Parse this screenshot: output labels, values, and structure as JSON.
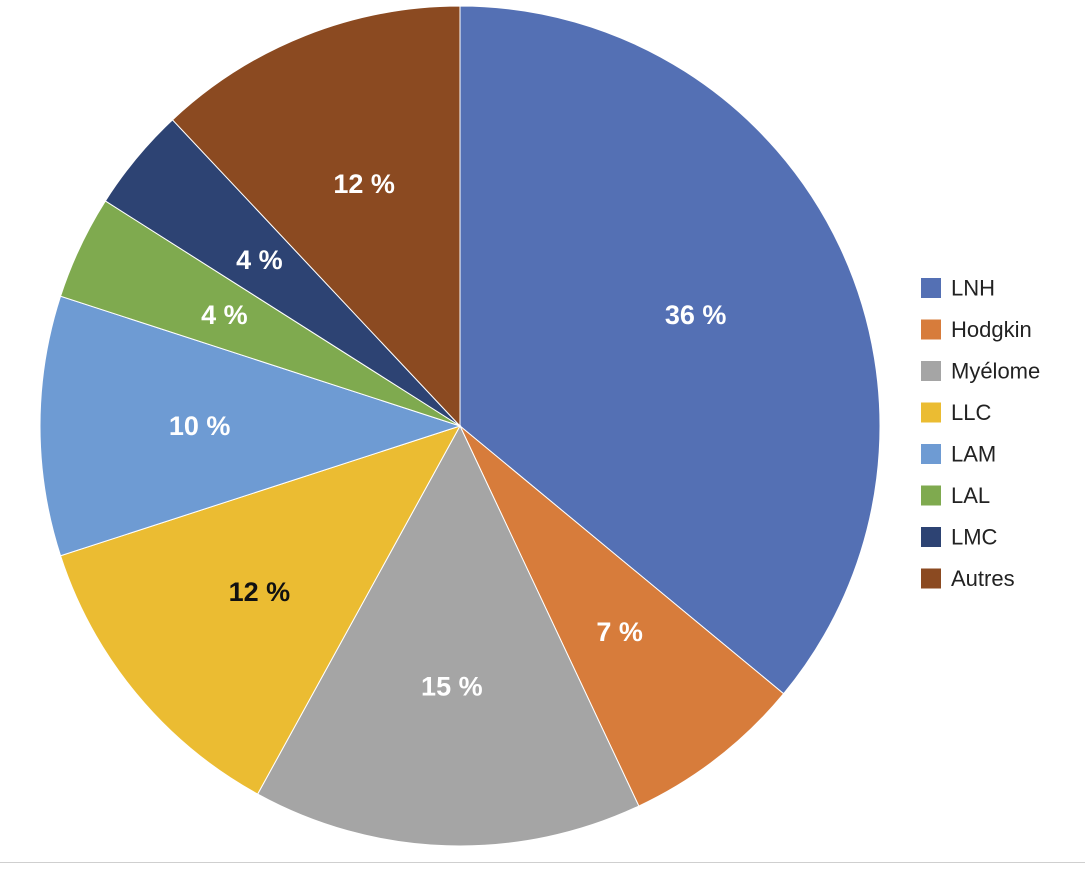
{
  "chart_data": {
    "type": "pie",
    "title": "",
    "start_angle_deg": 0,
    "direction": "clockwise",
    "legend_position": "right",
    "slices": [
      {
        "label": "LNH",
        "value": 36,
        "display": "36 %",
        "color": "#5470B4",
        "label_color": "#ffffff"
      },
      {
        "label": "Hodgkin",
        "value": 7,
        "display": "7 %",
        "color": "#D77C3B",
        "label_color": "#ffffff"
      },
      {
        "label": "Myélome",
        "value": 15,
        "display": "15 %",
        "color": "#A5A5A5",
        "label_color": "#ffffff"
      },
      {
        "label": "LLC",
        "value": 12,
        "display": "12 %",
        "color": "#EBBC32",
        "label_color": "#111111"
      },
      {
        "label": "LAM",
        "value": 10,
        "display": "10 %",
        "color": "#6E9BD3",
        "label_color": "#ffffff"
      },
      {
        "label": "LAL",
        "value": 4,
        "display": "4 %",
        "color": "#7FAA4F",
        "label_color": "#ffffff"
      },
      {
        "label": "LMC",
        "value": 4,
        "display": "4 %",
        "color": "#2D4373",
        "label_color": "#ffffff"
      },
      {
        "label": "Autres",
        "value": 12,
        "display": "12 %",
        "color": "#8B4A21",
        "label_color": "#ffffff"
      }
    ]
  }
}
